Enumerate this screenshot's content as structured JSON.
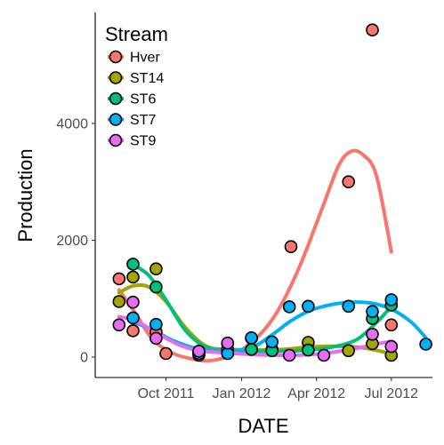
{
  "chart_data": {
    "type": "scatter",
    "xlabel": "DATE",
    "ylabel": "Production",
    "x_ticks": [
      "Oct 2011",
      "Jan 2012",
      "Apr 2012",
      "Jul 2012"
    ],
    "x_tick_values": [
      "2011-10-01",
      "2012-01-01",
      "2012-04-01",
      "2012-07-01"
    ],
    "xlim": [
      "2011-07-07",
      "2012-08-20"
    ],
    "y_ticks": [
      0,
      2000,
      4000
    ],
    "ylim": [
      -350,
      5900
    ],
    "grid": false,
    "legend": {
      "title": "Stream",
      "position": "top-left"
    },
    "smoothing": "loess",
    "series": [
      {
        "name": "Hver",
        "color": "#f8766d",
        "points": [
          {
            "x": "2011-08-05",
            "y": 1340
          },
          {
            "x": "2011-08-22",
            "y": 450
          },
          {
            "x": "2011-09-19",
            "y": 430
          },
          {
            "x": "2011-10-01",
            "y": 60
          },
          {
            "x": "2011-11-10",
            "y": 30
          },
          {
            "x": "2011-12-15",
            "y": 110
          },
          {
            "x": "2012-01-13",
            "y": 320
          },
          {
            "x": "2012-03-01",
            "y": 1890
          },
          {
            "x": "2012-05-10",
            "y": 3000
          },
          {
            "x": "2012-06-08",
            "y": 5600
          },
          {
            "x": "2012-07-01",
            "y": 550
          }
        ],
        "fit": [
          {
            "x": "2011-08-05",
            "y": 1150
          },
          {
            "x": "2011-08-25",
            "y": 750
          },
          {
            "x": "2011-09-15",
            "y": 300
          },
          {
            "x": "2011-10-10",
            "y": 60
          },
          {
            "x": "2011-11-05",
            "y": -40
          },
          {
            "x": "2011-11-25",
            "y": -60
          },
          {
            "x": "2011-12-20",
            "y": 40
          },
          {
            "x": "2012-01-13",
            "y": 250
          },
          {
            "x": "2012-02-10",
            "y": 700
          },
          {
            "x": "2012-03-10",
            "y": 1500
          },
          {
            "x": "2012-04-08",
            "y": 2550
          },
          {
            "x": "2012-04-28",
            "y": 3280
          },
          {
            "x": "2012-05-13",
            "y": 3520
          },
          {
            "x": "2012-05-28",
            "y": 3460
          },
          {
            "x": "2012-06-13",
            "y": 3100
          },
          {
            "x": "2012-07-01",
            "y": 1800
          }
        ]
      },
      {
        "name": "ST14",
        "color": "#a3a500",
        "points": [
          {
            "x": "2011-08-05",
            "y": 950
          },
          {
            "x": "2011-08-22",
            "y": 1370
          },
          {
            "x": "2011-09-19",
            "y": 1510
          },
          {
            "x": "2011-11-10",
            "y": 80
          },
          {
            "x": "2011-12-15",
            "y": 230
          },
          {
            "x": "2012-02-07",
            "y": 130
          },
          {
            "x": "2012-03-22",
            "y": 250
          },
          {
            "x": "2012-05-10",
            "y": 110
          },
          {
            "x": "2012-06-08",
            "y": 230
          },
          {
            "x": "2012-07-01",
            "y": 30
          }
        ],
        "fit": [
          {
            "x": "2011-08-05",
            "y": 1100
          },
          {
            "x": "2011-08-22",
            "y": 1220
          },
          {
            "x": "2011-09-10",
            "y": 1200
          },
          {
            "x": "2011-10-01",
            "y": 950
          },
          {
            "x": "2011-10-25",
            "y": 500
          },
          {
            "x": "2011-11-20",
            "y": 180
          },
          {
            "x": "2011-12-20",
            "y": 130
          },
          {
            "x": "2012-01-20",
            "y": 120
          },
          {
            "x": "2012-02-20",
            "y": 130
          },
          {
            "x": "2012-03-22",
            "y": 170
          },
          {
            "x": "2012-04-20",
            "y": 185
          },
          {
            "x": "2012-05-20",
            "y": 170
          },
          {
            "x": "2012-06-15",
            "y": 110
          },
          {
            "x": "2012-07-01",
            "y": 50
          }
        ]
      },
      {
        "name": "ST6",
        "color": "#00bf7d",
        "points": [
          {
            "x": "2011-08-22",
            "y": 1590
          },
          {
            "x": "2011-09-19",
            "y": 1200
          },
          {
            "x": "2011-11-10",
            "y": 70
          },
          {
            "x": "2011-12-15",
            "y": 130
          },
          {
            "x": "2012-01-13",
            "y": 130
          },
          {
            "x": "2012-02-07",
            "y": 110
          },
          {
            "x": "2012-03-22",
            "y": 120
          },
          {
            "x": "2012-06-08",
            "y": 660
          },
          {
            "x": "2012-07-01",
            "y": 890
          }
        ],
        "fit": [
          {
            "x": "2011-08-22",
            "y": 1580
          },
          {
            "x": "2011-09-10",
            "y": 1400
          },
          {
            "x": "2011-10-01",
            "y": 980
          },
          {
            "x": "2011-10-25",
            "y": 450
          },
          {
            "x": "2011-11-20",
            "y": 160
          },
          {
            "x": "2011-12-20",
            "y": 110
          },
          {
            "x": "2012-01-20",
            "y": 100
          },
          {
            "x": "2012-02-20",
            "y": 100
          },
          {
            "x": "2012-03-22",
            "y": 120
          },
          {
            "x": "2012-04-20",
            "y": 170
          },
          {
            "x": "2012-05-20",
            "y": 300
          },
          {
            "x": "2012-06-15",
            "y": 620
          },
          {
            "x": "2012-07-01",
            "y": 870
          }
        ]
      },
      {
        "name": "ST7",
        "color": "#00b0f6",
        "points": [
          {
            "x": "2011-08-22",
            "y": 670
          },
          {
            "x": "2011-09-19",
            "y": 560
          },
          {
            "x": "2011-11-10",
            "y": 60
          },
          {
            "x": "2011-12-15",
            "y": 60
          },
          {
            "x": "2012-01-13",
            "y": 330
          },
          {
            "x": "2012-02-07",
            "y": 260
          },
          {
            "x": "2012-02-28",
            "y": 860
          },
          {
            "x": "2012-03-22",
            "y": 870
          },
          {
            "x": "2012-05-10",
            "y": 870
          },
          {
            "x": "2012-06-08",
            "y": 780
          },
          {
            "x": "2012-07-01",
            "y": 980
          },
          {
            "x": "2012-08-12",
            "y": 220
          }
        ],
        "fit": [
          {
            "x": "2011-08-22",
            "y": 600
          },
          {
            "x": "2011-09-15",
            "y": 470
          },
          {
            "x": "2011-10-10",
            "y": 280
          },
          {
            "x": "2011-11-10",
            "y": 140
          },
          {
            "x": "2011-12-15",
            "y": 110
          },
          {
            "x": "2012-01-13",
            "y": 160
          },
          {
            "x": "2012-02-07",
            "y": 380
          },
          {
            "x": "2012-03-01",
            "y": 620
          },
          {
            "x": "2012-03-25",
            "y": 800
          },
          {
            "x": "2012-04-20",
            "y": 900
          },
          {
            "x": "2012-05-15",
            "y": 940
          },
          {
            "x": "2012-06-08",
            "y": 920
          },
          {
            "x": "2012-07-01",
            "y": 820
          },
          {
            "x": "2012-07-25",
            "y": 600
          },
          {
            "x": "2012-08-12",
            "y": 330
          }
        ]
      },
      {
        "name": "ST9",
        "color": "#e76bf3",
        "points": [
          {
            "x": "2011-08-05",
            "y": 550
          },
          {
            "x": "2011-08-22",
            "y": 940
          },
          {
            "x": "2011-09-19",
            "y": 320
          },
          {
            "x": "2011-11-10",
            "y": 100
          },
          {
            "x": "2011-12-15",
            "y": 240
          },
          {
            "x": "2012-02-28",
            "y": 30
          },
          {
            "x": "2012-04-10",
            "y": 30
          },
          {
            "x": "2012-06-08",
            "y": 390
          },
          {
            "x": "2012-07-01",
            "y": 180
          }
        ],
        "fit": [
          {
            "x": "2011-08-05",
            "y": 690
          },
          {
            "x": "2011-08-25",
            "y": 620
          },
          {
            "x": "2011-09-19",
            "y": 420
          },
          {
            "x": "2011-10-15",
            "y": 220
          },
          {
            "x": "2011-11-10",
            "y": 110
          },
          {
            "x": "2011-12-15",
            "y": 70
          },
          {
            "x": "2012-01-20",
            "y": 40
          },
          {
            "x": "2012-02-20",
            "y": 30
          },
          {
            "x": "2012-03-22",
            "y": 40
          },
          {
            "x": "2012-04-20",
            "y": 80
          },
          {
            "x": "2012-05-20",
            "y": 150
          },
          {
            "x": "2012-06-15",
            "y": 230
          },
          {
            "x": "2012-07-01",
            "y": 270
          }
        ]
      }
    ]
  }
}
